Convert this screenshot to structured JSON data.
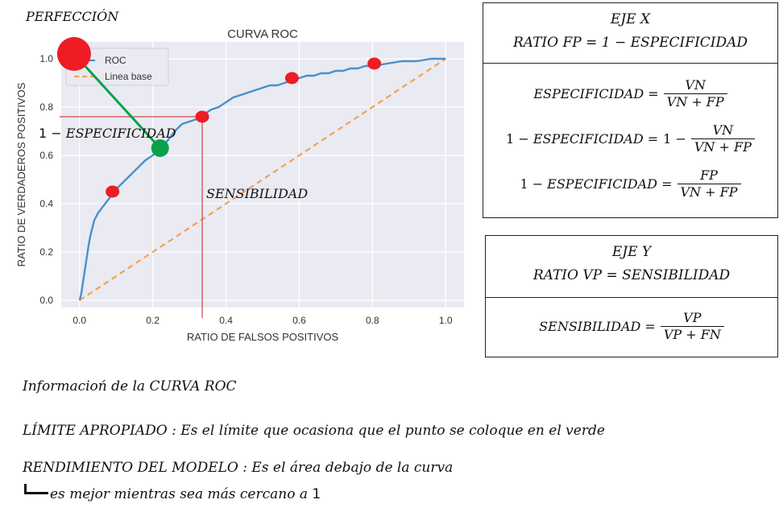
{
  "chart_data": {
    "type": "line",
    "title": "CURVA ROC",
    "xlabel": "RATIO DE FALSOS POSITIVOS",
    "ylabel": "RATIO DE VERDADEROS POSITIVOS",
    "xlim": [
      -0.05,
      1.05
    ],
    "ylim": [
      -0.03,
      1.07
    ],
    "xticks": [
      "0.0",
      "0.2",
      "0.4",
      "0.6",
      "0.8",
      "1.0"
    ],
    "yticks": [
      "0.0",
      "0.2",
      "0.4",
      "0.6",
      "0.8",
      "1.0"
    ],
    "grid": true,
    "legend": "top-left",
    "series": [
      {
        "name": "ROC",
        "color": "#4a90c8",
        "x": [
          0.0,
          0.005,
          0.01,
          0.015,
          0.02,
          0.025,
          0.03,
          0.035,
          0.04,
          0.05,
          0.06,
          0.07,
          0.08,
          0.09,
          0.1,
          0.12,
          0.14,
          0.16,
          0.18,
          0.2,
          0.22,
          0.24,
          0.26,
          0.28,
          0.3,
          0.32,
          0.34,
          0.36,
          0.38,
          0.4,
          0.42,
          0.44,
          0.46,
          0.48,
          0.5,
          0.52,
          0.54,
          0.56,
          0.58,
          0.6,
          0.62,
          0.64,
          0.66,
          0.68,
          0.7,
          0.72,
          0.74,
          0.76,
          0.78,
          0.8,
          0.84,
          0.88,
          0.92,
          0.96,
          1.0
        ],
        "y": [
          0.0,
          0.03,
          0.08,
          0.13,
          0.18,
          0.23,
          0.27,
          0.3,
          0.33,
          0.36,
          0.38,
          0.4,
          0.42,
          0.44,
          0.46,
          0.49,
          0.52,
          0.55,
          0.58,
          0.6,
          0.63,
          0.66,
          0.7,
          0.73,
          0.74,
          0.75,
          0.77,
          0.79,
          0.8,
          0.82,
          0.84,
          0.85,
          0.86,
          0.87,
          0.88,
          0.89,
          0.89,
          0.9,
          0.91,
          0.92,
          0.93,
          0.93,
          0.94,
          0.94,
          0.95,
          0.95,
          0.96,
          0.96,
          0.97,
          0.97,
          0.98,
          0.99,
          0.99,
          1.0,
          1.0
        ]
      },
      {
        "name": "Linea base",
        "color": "#f5a14d",
        "dashed": true,
        "x": [
          0.0,
          1.0
        ],
        "y": [
          0.0,
          1.0
        ]
      }
    ],
    "red_points": [
      [
        0.09,
        0.45
      ],
      [
        0.335,
        0.76
      ],
      [
        0.58,
        0.92
      ],
      [
        0.805,
        0.98
      ]
    ],
    "perfection_point": [
      -0.015,
      1.02
    ],
    "green_point": [
      0.22,
      0.63
    ],
    "guide_point": [
      0.335,
      0.76
    ],
    "colors": {
      "red": "#ee1c25",
      "green": "#0aa14c",
      "guide": "#c81e1e",
      "connector": "#0aa14c",
      "plot_bg": "#eaeaf2"
    }
  },
  "annotations": {
    "perfeccion": "PERFECCIÓN",
    "especificidad_prefix": "1 −",
    "especificidad_word": "ESPECIFICIDAD",
    "sensibilidad": "SENSIBILIDAD"
  },
  "box_x": {
    "title": "EJE X",
    "subtitle_left": "RATIO FP =",
    "subtitle_right": "1 − ESPECIFICIDAD",
    "eq1_lhs": "ESPECIFICIDAD =",
    "eq1_num": "VN",
    "eq1_den": "VN + FP",
    "eq2_lhs_a": "1 −",
    "eq2_lhs_b": "ESPECIFICIDAD =",
    "eq2_rhs": "1 −",
    "eq2_num": "VN",
    "eq2_den": "VN + FP",
    "eq3_lhs_a": "1 −",
    "eq3_lhs_b": "ESPECIFICIDAD =",
    "eq3_num": "FP",
    "eq3_den": "VN + FP"
  },
  "box_y": {
    "title": "EJE Y",
    "subtitle": "RATIO VP = SENSIBILIDAD",
    "eq_lhs": "SENSIBILIDAD =",
    "eq_num": "VP",
    "eq_den": "VP + FN"
  },
  "notes": {
    "line1": "Informacioń de la CURVA ROC",
    "line2": "LÍMITE APROPIADO : Es el límite que ocasiona que el punto se coloque en el verde",
    "line3": "RENDIMIENTO DEL MODELO : Es el área debajo de la curva",
    "line4_text": "es mejor mientras sea más cercano a",
    "line4_num": "1"
  }
}
